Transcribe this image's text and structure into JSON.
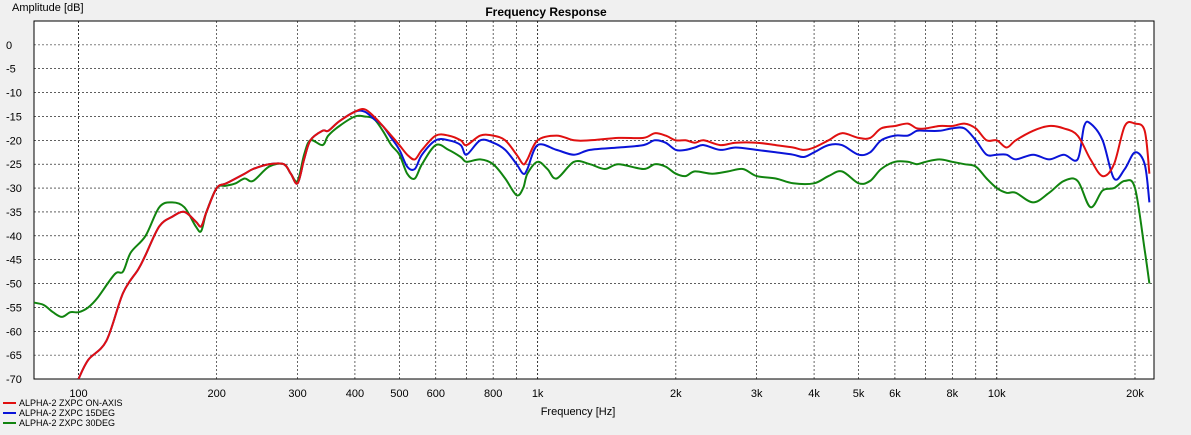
{
  "chart_data": {
    "type": "line",
    "title": "Frequency Response",
    "xlabel": "Frequency [Hz]",
    "ylabel": "Amplitude [dB]",
    "x_scale": "log",
    "xlim": [
      80,
      22000
    ],
    "ylim": [
      -70,
      5
    ],
    "grid": true,
    "legend_position": "bottom-left",
    "x_ticks": [
      {
        "value": 100,
        "label": "100"
      },
      {
        "value": 200,
        "label": "200"
      },
      {
        "value": 300,
        "label": "300"
      },
      {
        "value": 400,
        "label": "400"
      },
      {
        "value": 500,
        "label": "500"
      },
      {
        "value": 600,
        "label": "600"
      },
      {
        "value": 800,
        "label": "800"
      },
      {
        "value": 1000,
        "label": "1k"
      },
      {
        "value": 2000,
        "label": "2k"
      },
      {
        "value": 3000,
        "label": "3k"
      },
      {
        "value": 4000,
        "label": "4k"
      },
      {
        "value": 5000,
        "label": "5k"
      },
      {
        "value": 6000,
        "label": "6k"
      },
      {
        "value": 8000,
        "label": "8k"
      },
      {
        "value": 10000,
        "label": "10k"
      },
      {
        "value": 20000,
        "label": "20k"
      }
    ],
    "y_ticks": [
      {
        "value": 0,
        "label": "0"
      },
      {
        "value": -5,
        "label": "-5"
      },
      {
        "value": -10,
        "label": "-10"
      },
      {
        "value": -15,
        "label": "-15"
      },
      {
        "value": -20,
        "label": "-20"
      },
      {
        "value": -25,
        "label": "-25"
      },
      {
        "value": -30,
        "label": "-30"
      },
      {
        "value": -35,
        "label": "-35"
      },
      {
        "value": -40,
        "label": "-40"
      },
      {
        "value": -45,
        "label": "-45"
      },
      {
        "value": -50,
        "label": "-50"
      },
      {
        "value": -55,
        "label": "-55"
      },
      {
        "value": -60,
        "label": "-60"
      },
      {
        "value": -65,
        "label": "-65"
      },
      {
        "value": -70,
        "label": "-70"
      }
    ],
    "series": [
      {
        "name": "ALPHA-2 ZXPC ON-AXIS",
        "color": "#e01010",
        "x": [
          100,
          105,
          115,
          125,
          135,
          140,
          150,
          160,
          170,
          180,
          185,
          190,
          200,
          210,
          230,
          240,
          260,
          280,
          290,
          300,
          310,
          320,
          340,
          350,
          370,
          400,
          420,
          440,
          460,
          480,
          500,
          520,
          540,
          560,
          600,
          640,
          680,
          700,
          750,
          800,
          850,
          900,
          930,
          950,
          1000,
          1100,
          1200,
          1300,
          1500,
          1700,
          1800,
          1900,
          2000,
          2100,
          2200,
          2300,
          2500,
          2700,
          3000,
          3300,
          3600,
          3800,
          4000,
          4300,
          4600,
          5000,
          5300,
          5600,
          6000,
          6400,
          6700,
          7000,
          7500,
          8000,
          8500,
          9000,
          9500,
          10000,
          10500,
          11000,
          12000,
          13000,
          14000,
          15000,
          16000,
          17000,
          18000,
          19000,
          20000,
          21000,
          21500
        ],
        "y": [
          -70,
          -66,
          -62,
          -52,
          -47,
          -44,
          -38,
          -36,
          -35,
          -37,
          -38,
          -35,
          -30,
          -29,
          -27,
          -26,
          -25,
          -25,
          -27,
          -29,
          -24,
          -20,
          -18,
          -18,
          -16,
          -14,
          -13.5,
          -15,
          -17,
          -19,
          -21,
          -23,
          -24,
          -22,
          -19,
          -19,
          -20,
          -21,
          -19,
          -19,
          -20,
          -23,
          -25,
          -24,
          -20,
          -19,
          -20,
          -20,
          -19.5,
          -19.5,
          -18.5,
          -19,
          -20,
          -20,
          -20.5,
          -20,
          -21,
          -20.5,
          -20.5,
          -21,
          -21.5,
          -22,
          -21.5,
          -20,
          -18.5,
          -19.5,
          -19.5,
          -17.5,
          -17,
          -16.5,
          -17.5,
          -17.5,
          -17,
          -17,
          -16.5,
          -17.5,
          -20,
          -20,
          -21.5,
          -20,
          -18,
          -17,
          -17.5,
          -19,
          -24,
          -27.5,
          -25,
          -17,
          -16.5,
          -18,
          -27
        ]
      },
      {
        "name": "ALPHA-2 ZXPC 15DEG",
        "color": "#0a14d8",
        "x": [
          100,
          105,
          115,
          125,
          135,
          140,
          150,
          160,
          170,
          180,
          185,
          190,
          200,
          210,
          230,
          240,
          260,
          280,
          290,
          300,
          310,
          320,
          340,
          350,
          370,
          400,
          420,
          440,
          460,
          480,
          500,
          520,
          540,
          560,
          600,
          640,
          680,
          700,
          750,
          800,
          850,
          900,
          930,
          950,
          1000,
          1100,
          1200,
          1300,
          1500,
          1700,
          1800,
          1900,
          2000,
          2100,
          2200,
          2300,
          2500,
          2700,
          3000,
          3300,
          3600,
          3800,
          4000,
          4300,
          4600,
          5000,
          5300,
          5600,
          6000,
          6400,
          6700,
          7000,
          7500,
          8000,
          8500,
          9000,
          9500,
          10000,
          10500,
          11000,
          12000,
          13000,
          14000,
          15000,
          15500,
          16000,
          17000,
          18000,
          19000,
          20000,
          21000,
          21500
        ],
        "y": [
          -70,
          -66,
          -62,
          -52,
          -47,
          -44,
          -38,
          -36,
          -35,
          -37,
          -38,
          -35,
          -30,
          -29,
          -27,
          -26,
          -25,
          -25,
          -27,
          -29,
          -24,
          -20,
          -18,
          -18,
          -16,
          -14,
          -14,
          -15.5,
          -17,
          -19.5,
          -22,
          -25.5,
          -26,
          -23,
          -20,
          -20,
          -21,
          -23,
          -20,
          -20.5,
          -22,
          -25,
          -27,
          -26,
          -21,
          -22,
          -23,
          -22,
          -21.5,
          -21,
          -20,
          -20.5,
          -22,
          -22,
          -21.5,
          -21,
          -22,
          -21.5,
          -22,
          -22.5,
          -23,
          -23.5,
          -22.5,
          -21,
          -21,
          -23,
          -22.5,
          -20,
          -19,
          -19,
          -18,
          -18,
          -18,
          -17.5,
          -17.5,
          -20,
          -23,
          -23,
          -23,
          -24,
          -23,
          -24,
          -23,
          -24,
          -17,
          -16.5,
          -20,
          -28,
          -26,
          -22.5,
          -25,
          -33
        ]
      },
      {
        "name": "ALPHA-2 ZXPC 30DEG",
        "color": "#11840f",
        "x": [
          80,
          84,
          88,
          92,
          96,
          100,
          105,
          110,
          120,
          125,
          130,
          140,
          150,
          160,
          170,
          180,
          185,
          190,
          200,
          210,
          220,
          230,
          240,
          260,
          280,
          290,
          300,
          310,
          320,
          340,
          350,
          370,
          400,
          420,
          440,
          460,
          480,
          500,
          520,
          540,
          560,
          600,
          640,
          680,
          700,
          750,
          800,
          850,
          900,
          930,
          950,
          1000,
          1050,
          1100,
          1200,
          1300,
          1400,
          1500,
          1700,
          1800,
          1900,
          2000,
          2100,
          2200,
          2400,
          2600,
          2800,
          3000,
          3300,
          3600,
          4000,
          4300,
          4600,
          5000,
          5300,
          5600,
          6000,
          6400,
          6700,
          7000,
          7500,
          8000,
          8500,
          9000,
          9500,
          10000,
          10500,
          11000,
          12000,
          13000,
          14000,
          15000,
          16000,
          17000,
          18000,
          19000,
          20000,
          21000,
          21500
        ],
        "y": [
          -54,
          -54.5,
          -56,
          -57,
          -56,
          -56,
          -55,
          -53,
          -48,
          -47.5,
          -43.5,
          -40,
          -34,
          -33,
          -34,
          -38,
          -39,
          -35,
          -30,
          -29.5,
          -29,
          -28,
          -28.5,
          -25.5,
          -25,
          -27,
          -28.5,
          -23,
          -20,
          -21,
          -19,
          -17,
          -15,
          -15,
          -15.5,
          -18,
          -21,
          -23,
          -27,
          -28,
          -25,
          -21,
          -22,
          -23.5,
          -24.5,
          -24,
          -25,
          -28,
          -31.5,
          -30,
          -27,
          -24.5,
          -26,
          -28,
          -24.5,
          -25,
          -26,
          -25,
          -26,
          -25,
          -25.5,
          -27,
          -27.5,
          -26.5,
          -27,
          -26.5,
          -26,
          -27.5,
          -28,
          -29,
          -29,
          -27.5,
          -26.5,
          -29,
          -28.5,
          -26,
          -24.5,
          -24.5,
          -25,
          -24.5,
          -24,
          -24.5,
          -25,
          -25.5,
          -28,
          -30,
          -31,
          -31,
          -33,
          -31,
          -28.5,
          -28.5,
          -34,
          -30.5,
          -30,
          -28.5,
          -30,
          -43,
          -50
        ]
      }
    ]
  }
}
